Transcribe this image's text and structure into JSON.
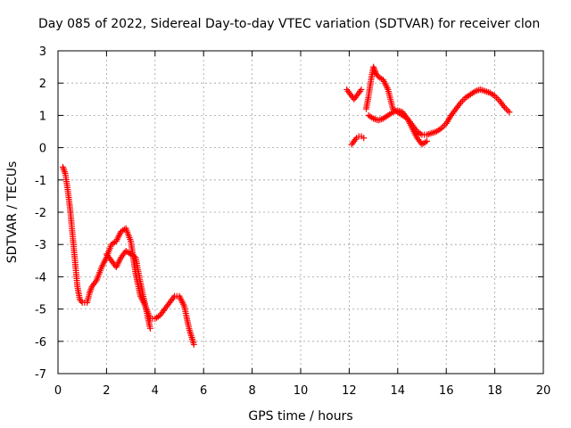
{
  "chart_data": {
    "type": "scatter",
    "title": "Day 085 of 2022, Sidereal Day-to-day VTEC variation (SDTVAR) for receiver clon",
    "xlabel": "GPS time / hours",
    "ylabel": "SDTVAR / TECUs",
    "xlim": [
      0,
      20
    ],
    "ylim": [
      -7,
      3
    ],
    "grid": true,
    "marker": "+",
    "colors": {
      "series": "#ff0000",
      "grid": "#a0a0a0",
      "axes": "#000000"
    },
    "x_tick_labels": [
      "0",
      "2",
      "4",
      "6",
      "8",
      "10",
      "12",
      "14",
      "16",
      "18",
      "20"
    ],
    "y_tick_labels": [
      "3",
      "2",
      "1",
      "0",
      "-1",
      "-2",
      "-3",
      "-4",
      "-5",
      "-6",
      "-7"
    ],
    "x_ticks": [
      0,
      2,
      4,
      6,
      8,
      10,
      12,
      14,
      16,
      18,
      20
    ],
    "y_ticks": [
      3,
      2,
      1,
      0,
      -1,
      -2,
      -3,
      -4,
      -5,
      -6,
      -7
    ],
    "series": [
      {
        "name": "segment-1a",
        "x": [
          0.2,
          0.3,
          0.4,
          0.5,
          0.6,
          0.7,
          0.8,
          0.9,
          1.0,
          1.1,
          1.2,
          1.3,
          1.4,
          1.6,
          1.8,
          2.0,
          2.2,
          2.4,
          2.6,
          2.8,
          3.0,
          3.2,
          3.4,
          3.6,
          3.8,
          4.0,
          4.2,
          4.4,
          4.6,
          4.8,
          5.0,
          5.2,
          5.4,
          5.6
        ],
        "y": [
          -0.6,
          -0.8,
          -1.3,
          -1.9,
          -2.7,
          -3.5,
          -4.3,
          -4.7,
          -4.8,
          -4.8,
          -4.8,
          -4.5,
          -4.3,
          -4.1,
          -3.7,
          -3.4,
          -3.0,
          -2.9,
          -2.6,
          -2.5,
          -2.9,
          -3.9,
          -4.6,
          -4.9,
          -5.3,
          -5.3,
          -5.2,
          -5.0,
          -4.8,
          -4.6,
          -4.6,
          -4.9,
          -5.6,
          -6.1
        ]
      },
      {
        "name": "segment-1b",
        "x": [
          2.0,
          2.2,
          2.4,
          2.6,
          2.8,
          3.0,
          3.2,
          3.4,
          3.6,
          3.8
        ],
        "y": [
          -3.3,
          -3.5,
          -3.7,
          -3.4,
          -3.2,
          -3.3,
          -3.4,
          -4.2,
          -4.9,
          -5.6
        ]
      },
      {
        "name": "segment-2a",
        "x": [
          11.9,
          12.0,
          12.1,
          12.2,
          12.3,
          12.4,
          12.5
        ],
        "y": [
          1.8,
          1.7,
          1.6,
          1.5,
          1.6,
          1.7,
          1.8
        ]
      },
      {
        "name": "segment-2b",
        "x": [
          12.1,
          12.2,
          12.3,
          12.4,
          12.5,
          12.6
        ],
        "y": [
          0.1,
          0.2,
          0.3,
          0.35,
          0.35,
          0.3
        ]
      },
      {
        "name": "segment-2c",
        "x": [
          12.7,
          12.8,
          12.9,
          13.0,
          13.1,
          13.2,
          13.4,
          13.6,
          13.8,
          14.0,
          14.2,
          14.4,
          14.6,
          14.8,
          15.0,
          15.2,
          15.4,
          15.6,
          15.8,
          16.0,
          16.2,
          16.4,
          16.6,
          16.8,
          17.0,
          17.2,
          17.4,
          17.6,
          17.8,
          18.0,
          18.2,
          18.4,
          18.6
        ],
        "y": [
          1.2,
          1.6,
          2.1,
          2.5,
          2.3,
          2.2,
          2.1,
          1.8,
          1.2,
          1.1,
          1.0,
          0.9,
          0.7,
          0.5,
          0.4,
          0.4,
          0.45,
          0.5,
          0.6,
          0.75,
          1.0,
          1.2,
          1.4,
          1.55,
          1.65,
          1.75,
          1.8,
          1.75,
          1.7,
          1.6,
          1.45,
          1.25,
          1.1
        ]
      },
      {
        "name": "segment-2d",
        "x": [
          12.8,
          13.0,
          13.2,
          13.4,
          13.6,
          13.8,
          14.0,
          14.2,
          14.4,
          14.6,
          14.8,
          15.0,
          15.2
        ],
        "y": [
          1.0,
          0.9,
          0.85,
          0.9,
          1.0,
          1.1,
          1.15,
          1.1,
          0.9,
          0.6,
          0.3,
          0.1,
          0.2
        ]
      }
    ]
  }
}
